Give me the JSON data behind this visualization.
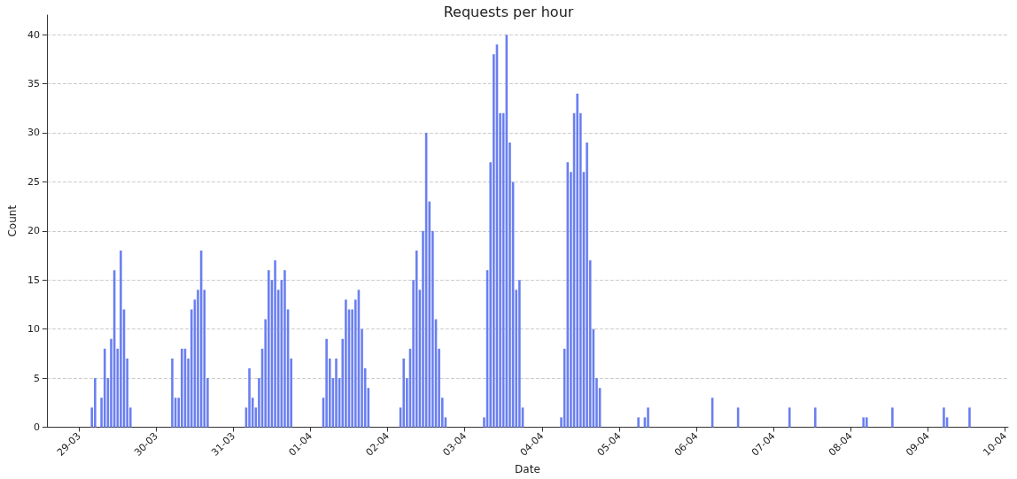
{
  "chart_data": {
    "type": "bar",
    "title": "Requests per hour",
    "xlabel": "Date",
    "ylabel": "Count",
    "color": "#6a7ff0",
    "x": [
      "--03-29T04:00",
      "--03-29T05:00",
      "--03-29T07:00",
      "--03-29T08:00",
      "--03-29T09:00",
      "--03-29T10:00",
      "--03-29T11:00",
      "--03-29T12:00",
      "--03-29T13:00",
      "--03-29T14:00",
      "--03-29T15:00",
      "--03-29T16:00",
      "--03-30T05:00",
      "--03-30T06:00",
      "--03-30T07:00",
      "--03-30T08:00",
      "--03-30T09:00",
      "--03-30T10:00",
      "--03-30T11:00",
      "--03-30T12:00",
      "--03-30T13:00",
      "--03-30T14:00",
      "--03-30T15:00",
      "--03-30T16:00",
      "--03-31T04:00",
      "--03-31T05:00",
      "--03-31T06:00",
      "--03-31T07:00",
      "--03-31T08:00",
      "--03-31T09:00",
      "--03-31T10:00",
      "--03-31T11:00",
      "--03-31T12:00",
      "--03-31T13:00",
      "--03-31T14:00",
      "--03-31T15:00",
      "--03-31T16:00",
      "--03-31T17:00",
      "--03-31T18:00",
      "--04-01T04:00",
      "--04-01T05:00",
      "--04-01T06:00",
      "--04-01T07:00",
      "--04-01T08:00",
      "--04-01T09:00",
      "--04-01T10:00",
      "--04-01T11:00",
      "--04-01T12:00",
      "--04-01T13:00",
      "--04-01T14:00",
      "--04-01T15:00",
      "--04-01T16:00",
      "--04-01T17:00",
      "--04-01T18:00",
      "--04-02T04:00",
      "--04-02T05:00",
      "--04-02T06:00",
      "--04-02T07:00",
      "--04-02T08:00",
      "--04-02T09:00",
      "--04-02T10:00",
      "--04-02T11:00",
      "--04-02T12:00",
      "--04-02T13:00",
      "--04-02T14:00",
      "--04-02T15:00",
      "--04-02T16:00",
      "--04-02T17:00",
      "--04-02T18:00",
      "--04-03T06:00",
      "--04-03T07:00",
      "--04-03T08:00",
      "--04-03T09:00",
      "--04-03T10:00",
      "--04-03T11:00",
      "--04-03T12:00",
      "--04-03T13:00",
      "--04-03T14:00",
      "--04-03T15:00",
      "--04-03T16:00",
      "--04-03T17:00",
      "--04-03T18:00",
      "--04-04T06:00",
      "--04-04T07:00",
      "--04-04T08:00",
      "--04-04T09:00",
      "--04-04T10:00",
      "--04-04T11:00",
      "--04-04T12:00",
      "--04-04T13:00",
      "--04-04T14:00",
      "--04-04T15:00",
      "--04-04T16:00",
      "--04-04T17:00",
      "--04-04T18:00",
      "--04-05T06:00",
      "--04-05T08:00",
      "--04-05T09:00",
      "--04-06T05:00",
      "--04-06T13:00",
      "--04-07T05:00",
      "--04-07T13:00",
      "--04-08T04:00",
      "--04-08T05:00",
      "--04-08T13:00",
      "--04-09T05:00",
      "--04-09T06:00",
      "--04-09T13:00"
    ],
    "values": [
      2,
      5,
      3,
      8,
      5,
      9,
      16,
      8,
      18,
      12,
      7,
      2,
      7,
      3,
      3,
      8,
      8,
      7,
      12,
      13,
      14,
      18,
      14,
      5,
      2,
      6,
      3,
      2,
      5,
      8,
      11,
      16,
      15,
      17,
      14,
      15,
      16,
      12,
      7,
      3,
      9,
      7,
      5,
      7,
      5,
      9,
      13,
      12,
      12,
      13,
      14,
      10,
      6,
      4,
      2,
      7,
      5,
      8,
      15,
      18,
      14,
      20,
      30,
      23,
      20,
      11,
      8,
      3,
      1,
      1,
      16,
      27,
      38,
      39,
      32,
      32,
      40,
      29,
      25,
      14,
      15,
      2,
      1,
      8,
      27,
      26,
      32,
      34,
      32,
      26,
      29,
      17,
      10,
      5,
      4,
      1,
      1,
      2,
      3,
      2,
      2,
      2,
      1,
      1,
      2,
      2,
      1,
      2
    ],
    "xlim": [
      "--03-28T14:00",
      "--04-10T01:00"
    ],
    "xticks": [
      {
        "value": "--03-29",
        "label": "29-03"
      },
      {
        "value": "--03-30",
        "label": "30-03"
      },
      {
        "value": "--03-31",
        "label": "31-03"
      },
      {
        "value": "--04-01",
        "label": "01-04"
      },
      {
        "value": "--04-02",
        "label": "02-04"
      },
      {
        "value": "--04-03",
        "label": "03-04"
      },
      {
        "value": "--04-04",
        "label": "04-04"
      },
      {
        "value": "--04-05",
        "label": "05-04"
      },
      {
        "value": "--04-06",
        "label": "06-04"
      },
      {
        "value": "--04-07",
        "label": "07-04"
      },
      {
        "value": "--04-08",
        "label": "08-04"
      },
      {
        "value": "--04-09",
        "label": "09-04"
      },
      {
        "value": "--04-10",
        "label": "10-04"
      }
    ],
    "ylim": [
      0,
      42
    ],
    "yticks": [
      0,
      5,
      10,
      15,
      20,
      25,
      30,
      35,
      40
    ],
    "grid": "y"
  }
}
